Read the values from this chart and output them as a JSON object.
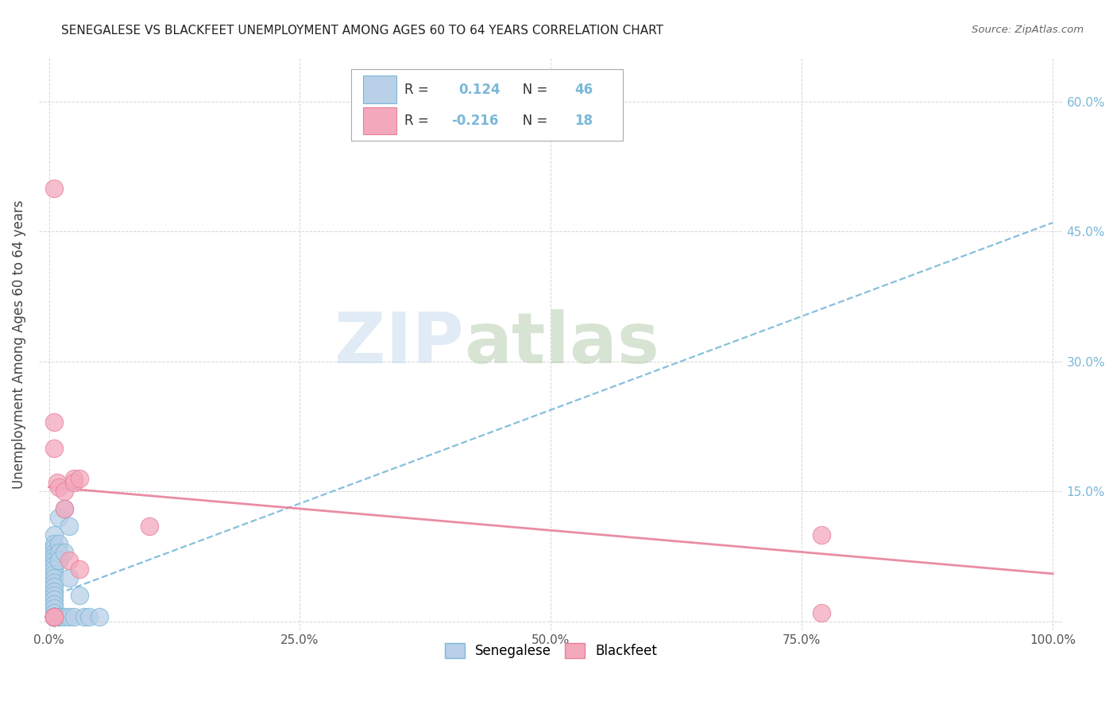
{
  "title": "SENEGALESE VS BLACKFEET UNEMPLOYMENT AMONG AGES 60 TO 64 YEARS CORRELATION CHART",
  "source": "Source: ZipAtlas.com",
  "xlabel": "",
  "ylabel": "Unemployment Among Ages 60 to 64 years",
  "xlim": [
    -0.01,
    1.01
  ],
  "ylim": [
    -0.01,
    0.65
  ],
  "xticks": [
    0.0,
    0.25,
    0.5,
    0.75,
    1.0
  ],
  "xticklabels": [
    "0.0%",
    "25.0%",
    "50.0%",
    "75.0%",
    "100.0%"
  ],
  "yticks": [
    0.0,
    0.15,
    0.3,
    0.45,
    0.6
  ],
  "yticklabels_right": [
    "",
    "15.0%",
    "30.0%",
    "45.0%",
    "60.0%"
  ],
  "legend_labels": [
    "Senegalese",
    "Blackfeet"
  ],
  "R_senegalese": 0.124,
  "N_senegalese": 46,
  "R_blackfeet": -0.216,
  "N_blackfeet": 18,
  "senegalese_color": "#b8d0e8",
  "blackfeet_color": "#f4a8bc",
  "trend_blue_color": "#7ab8d8",
  "trend_pink_color": "#e8809a",
  "watermark_zip": "ZIP",
  "watermark_atlas": "atlas",
  "background_color": "#ffffff",
  "senegalese_x": [
    0.005,
    0.005,
    0.005,
    0.005,
    0.005,
    0.005,
    0.005,
    0.005,
    0.005,
    0.005,
    0.005,
    0.005,
    0.005,
    0.005,
    0.005,
    0.005,
    0.005,
    0.005,
    0.005,
    0.005,
    0.005,
    0.005,
    0.005,
    0.005,
    0.005,
    0.005,
    0.005,
    0.005,
    0.005,
    0.01,
    0.01,
    0.01,
    0.01,
    0.01,
    0.01,
    0.015,
    0.015,
    0.015,
    0.02,
    0.02,
    0.02,
    0.025,
    0.03,
    0.035,
    0.04,
    0.05
  ],
  "senegalese_y": [
    0.1,
    0.09,
    0.085,
    0.08,
    0.075,
    0.07,
    0.065,
    0.06,
    0.055,
    0.05,
    0.045,
    0.04,
    0.035,
    0.03,
    0.025,
    0.02,
    0.015,
    0.01,
    0.005,
    0.005,
    0.005,
    0.005,
    0.005,
    0.005,
    0.005,
    0.005,
    0.005,
    0.005,
    0.005,
    0.12,
    0.09,
    0.08,
    0.07,
    0.005,
    0.005,
    0.13,
    0.08,
    0.005,
    0.11,
    0.05,
    0.005,
    0.005,
    0.03,
    0.005,
    0.005,
    0.005
  ],
  "blackfeet_x": [
    0.005,
    0.005,
    0.005,
    0.008,
    0.01,
    0.015,
    0.015,
    0.02,
    0.025,
    0.025,
    0.03,
    0.03,
    0.1,
    0.77,
    0.77,
    0.005,
    0.005,
    0.005
  ],
  "blackfeet_y": [
    0.5,
    0.23,
    0.2,
    0.16,
    0.155,
    0.15,
    0.13,
    0.07,
    0.165,
    0.16,
    0.165,
    0.06,
    0.11,
    0.1,
    0.01,
    0.005,
    0.005,
    0.005
  ],
  "trend_blue_start_y": 0.028,
  "trend_blue_end_y": 0.46,
  "trend_pink_start_y": 0.155,
  "trend_pink_end_y": 0.055
}
